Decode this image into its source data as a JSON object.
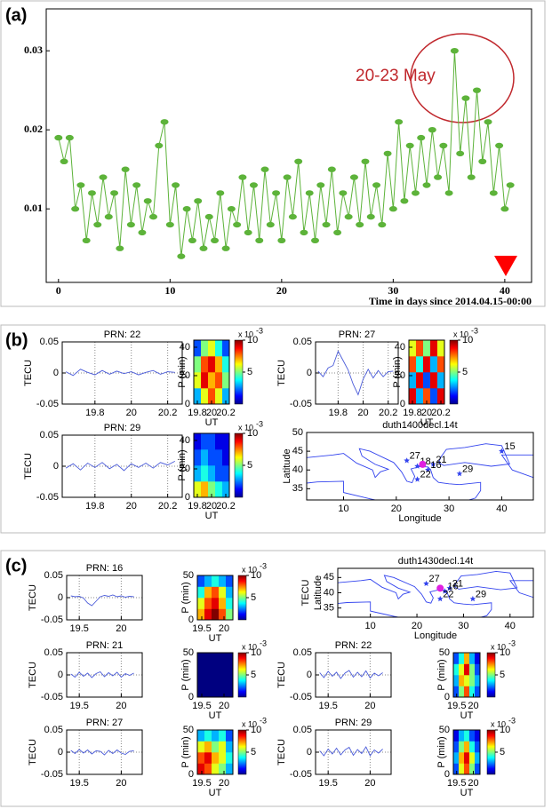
{
  "panels": [
    "(a)",
    "(b)",
    "(c)"
  ],
  "chart_data": [
    {
      "type": "line",
      "annotation": "20-23 May",
      "xlabel": "Time in days since 2014.04.15-00:00",
      "color": "#5db33a",
      "markers": true,
      "grid": false,
      "x": [
        0,
        0.5,
        1,
        1.5,
        2,
        2.5,
        3,
        3.5,
        4,
        4.5,
        5,
        5.5,
        6,
        6.5,
        7,
        7.5,
        8,
        8.5,
        9,
        9.5,
        10,
        10.5,
        11,
        11.5,
        12,
        12.5,
        13,
        13.5,
        14,
        14.5,
        15,
        15.5,
        16,
        16.5,
        17,
        17.5,
        18,
        18.5,
        19,
        19.5,
        20,
        20.5,
        21,
        21.5,
        22,
        22.5,
        23,
        23.5,
        24,
        24.5,
        25,
        25.5,
        26,
        26.5,
        27,
        27.5,
        28,
        28.5,
        29,
        29.5,
        30,
        30.5,
        31,
        31.5,
        32,
        32.5,
        33,
        33.5,
        34,
        34.5,
        35,
        35.5,
        36,
        36.5,
        37,
        37.5,
        38,
        38.5,
        39,
        39.5,
        40,
        40.5
      ],
      "values": [
        0.019,
        0.016,
        0.019,
        0.01,
        0.013,
        0.006,
        0.012,
        0.008,
        0.014,
        0.009,
        0.012,
        0.005,
        0.015,
        0.008,
        0.013,
        0.007,
        0.011,
        0.009,
        0.018,
        0.021,
        0.008,
        0.013,
        0.004,
        0.01,
        0.006,
        0.011,
        0.005,
        0.009,
        0.006,
        0.012,
        0.005,
        0.01,
        0.008,
        0.014,
        0.007,
        0.013,
        0.006,
        0.015,
        0.008,
        0.012,
        0.006,
        0.014,
        0.009,
        0.016,
        0.007,
        0.012,
        0.006,
        0.013,
        0.008,
        0.015,
        0.007,
        0.012,
        0.009,
        0.014,
        0.008,
        0.016,
        0.009,
        0.013,
        0.008,
        0.017,
        0.01,
        0.021,
        0.011,
        0.018,
        0.012,
        0.019,
        0.013,
        0.02,
        0.014,
        0.018,
        0.012,
        0.03,
        0.017,
        0.024,
        0.014,
        0.025,
        0.016,
        0.021,
        0.012,
        0.018,
        0.01,
        0.013
      ],
      "xlim": [
        -1.1,
        42.4
      ],
      "xticks": [
        0,
        10,
        20,
        30,
        40
      ],
      "ylim": [
        0.0007,
        0.0353
      ],
      "yticks": [
        0.01,
        0.02,
        0.03
      ]
    },
    {
      "type": "line",
      "title": "PRN: 22",
      "ylabel": "TECU",
      "color": "#4a5bd9",
      "grid": true,
      "x": [
        19.64,
        19.68,
        19.72,
        19.76,
        19.8,
        19.84,
        19.88,
        19.92,
        19.96,
        20,
        20.04,
        20.08,
        20.12,
        20.16,
        20.2,
        20.24
      ],
      "values": [
        0.002,
        -0.004,
        0.006,
        0.001,
        -0.003,
        0.004,
        -0.002,
        0.003,
        -0.001,
        0.002,
        -0.003,
        0.001,
        0.004,
        -0.002,
        0.002,
        0.001
      ],
      "xlim": [
        19.62,
        20.28
      ],
      "xticks": [
        19.8,
        20,
        20.2
      ],
      "ylim": [
        -0.05,
        0.05
      ],
      "yticks": [
        -0.05,
        0,
        0.05
      ]
    },
    {
      "type": "heatmap",
      "ylabel": "P (min)",
      "xlabel": "UT",
      "xlim": [
        19.75,
        20.25
      ],
      "xticks": [
        19.8,
        20,
        20.2
      ],
      "ylim": [
        0,
        45
      ],
      "yticks": [
        0,
        20,
        40
      ],
      "z": [
        [
          3,
          6,
          8,
          6,
          3
        ],
        [
          6,
          9,
          7,
          8,
          5
        ],
        [
          5,
          8,
          9,
          7,
          4
        ],
        [
          2,
          5,
          6,
          4,
          2
        ]
      ],
      "zlim": [
        0,
        10
      ],
      "colorbar_ticks": [
        5,
        10
      ],
      "colorbar_label": "x 10",
      "colorbar_exponent": "-3"
    },
    {
      "type": "line",
      "title": "PRN: 27",
      "ylabel": "TECU",
      "color": "#4a5bd9",
      "grid": true,
      "x": [
        19.64,
        19.68,
        19.72,
        19.76,
        19.8,
        19.84,
        19.88,
        19.92,
        19.96,
        20,
        20.04,
        20.08,
        20.12,
        20.16,
        20.2,
        20.24
      ],
      "values": [
        0.003,
        -0.006,
        0.008,
        0.012,
        0.035,
        0.02,
        0.005,
        -0.018,
        -0.035,
        -0.01,
        0.006,
        -0.008,
        0.004,
        -0.006,
        0.002,
        0.003
      ],
      "xlim": [
        19.62,
        20.28
      ],
      "xticks": [
        19.8,
        20,
        20.2
      ],
      "ylim": [
        -0.05,
        0.05
      ],
      "yticks": [
        -0.05,
        0,
        0.05
      ]
    },
    {
      "type": "heatmap",
      "ylabel": "P (min)",
      "xlabel": "UT",
      "xlim": [
        19.75,
        20.25
      ],
      "xticks": [
        19.8,
        20,
        20.2
      ],
      "ylim": [
        0,
        45
      ],
      "yticks": [
        0,
        20,
        40
      ],
      "z": [
        [
          9,
          3,
          8,
          2,
          9
        ],
        [
          3,
          9,
          2,
          9,
          3
        ],
        [
          8,
          4,
          9,
          3,
          8
        ],
        [
          6,
          8,
          5,
          9,
          6
        ]
      ],
      "zlim": [
        0,
        10
      ],
      "colorbar_ticks": [
        5,
        10
      ],
      "colorbar_label": "x 10",
      "colorbar_exponent": "-3"
    },
    {
      "type": "line",
      "title": "PRN: 29",
      "ylabel": "TECU",
      "color": "#4a5bd9",
      "grid": true,
      "x": [
        19.64,
        19.68,
        19.72,
        19.76,
        19.8,
        19.84,
        19.88,
        19.92,
        19.96,
        20,
        20.04,
        20.08,
        20.12,
        20.16,
        20.2,
        20.24
      ],
      "values": [
        -0.003,
        0.004,
        -0.006,
        0.005,
        -0.002,
        0.006,
        -0.004,
        0.003,
        -0.007,
        0.004,
        -0.002,
        0.005,
        -0.003,
        0.006,
        0.002,
        0.008
      ],
      "xlim": [
        19.62,
        20.28
      ],
      "xticks": [
        19.8,
        20,
        20.2
      ],
      "ylim": [
        -0.05,
        0.05
      ],
      "yticks": [
        -0.05,
        0,
        0.05
      ]
    },
    {
      "type": "heatmap",
      "ylabel": "P (min)",
      "xlabel": "UT",
      "xlim": [
        19.75,
        20.25
      ],
      "xticks": [
        19.8,
        20,
        20.2
      ],
      "ylim": [
        0,
        45
      ],
      "yticks": [
        0,
        20,
        40
      ],
      "z": [
        [
          6,
          7,
          5,
          4,
          3
        ],
        [
          3,
          4,
          3,
          2,
          2
        ],
        [
          2,
          3,
          2,
          2,
          1
        ],
        [
          1,
          2,
          2,
          1,
          1
        ]
      ],
      "zlim": [
        0,
        10
      ],
      "colorbar_ticks": [
        5,
        10
      ],
      "colorbar_label": "x 10",
      "colorbar_exponent": "-3"
    },
    {
      "type": "map",
      "title": "duth1400decl.14t",
      "xlabel": "Longitude",
      "ylabel": "Latitude",
      "color": "#3344ee",
      "x": [
        22,
        40,
        24,
        27,
        26,
        24,
        32
      ],
      "values": [
        42.5,
        45,
        41,
        41.5,
        40,
        37.5,
        39
      ],
      "point_labels": [
        "27",
        "15",
        "18",
        "21",
        "16",
        "22",
        "29"
      ],
      "epicenter": {
        "x": 25,
        "y": 41.5
      },
      "xlim": [
        3,
        46
      ],
      "xticks": [
        10,
        20,
        30,
        40
      ],
      "ylim": [
        32,
        50
      ],
      "yticks": [
        35,
        40,
        45,
        50
      ]
    },
    {
      "type": "line",
      "title": "PRN: 16",
      "ylabel": "TECU",
      "color": "#4a5bd9",
      "grid": true,
      "x": [
        19.4,
        19.45,
        19.5,
        19.55,
        19.6,
        19.65,
        19.7,
        19.75,
        19.8,
        19.85,
        19.9,
        19.95,
        20,
        20.05,
        20.1,
        20.15
      ],
      "values": [
        0.004,
        0.002,
        0.003,
        -0.001,
        -0.012,
        -0.018,
        -0.008,
        0.002,
        0.005,
        0.003,
        0.006,
        0.002,
        0.004,
        0.001,
        0.003,
        0.002
      ],
      "xlim": [
        19.35,
        20.25
      ],
      "xticks": [
        19.5,
        20
      ],
      "ylim": [
        -0.05,
        0.05
      ],
      "yticks": [
        -0.05,
        0,
        0.05
      ]
    },
    {
      "type": "heatmap",
      "ylabel": "P (min)",
      "xlabel": "UT",
      "xlim": [
        19.4,
        20.2
      ],
      "xticks": [
        19.5,
        20
      ],
      "ylim": [
        0,
        50
      ],
      "yticks": [
        0,
        50
      ],
      "z": [
        [
          7,
          9,
          10,
          8,
          5
        ],
        [
          6,
          8,
          9,
          7,
          4
        ],
        [
          4,
          7,
          8,
          6,
          3
        ],
        [
          2,
          3,
          4,
          3,
          2
        ]
      ],
      "zlim": [
        0,
        10
      ],
      "colorbar_ticks": [
        5,
        10
      ],
      "colorbar_label": "x 10",
      "colorbar_exponent": "-3"
    },
    {
      "type": "map",
      "title": "duth1430decl.14t",
      "xlabel": "Longitude",
      "ylabel": "Latitude",
      "side_label": "TECU",
      "color": "#3344ee",
      "x": [
        22,
        27,
        26,
        25,
        32
      ],
      "values": [
        43,
        41.5,
        40.5,
        38,
        38
      ],
      "point_labels": [
        "27",
        "21",
        "16",
        "22",
        "29"
      ],
      "epicenter": {
        "x": 25,
        "y": 41.5
      },
      "xlim": [
        3,
        45
      ],
      "xticks": [
        10,
        20,
        30,
        40
      ],
      "ylim": [
        32,
        48
      ],
      "yticks": [
        35,
        40,
        45
      ]
    },
    {
      "type": "line",
      "title": "PRN: 21",
      "ylabel": "TECU",
      "color": "#4a5bd9",
      "grid": true,
      "x": [
        19.4,
        19.45,
        19.5,
        19.55,
        19.6,
        19.65,
        19.7,
        19.75,
        19.8,
        19.85,
        19.9,
        19.95,
        20,
        20.05,
        20.1,
        20.15
      ],
      "values": [
        0.002,
        -0.005,
        0.006,
        -0.003,
        0.004,
        -0.006,
        0.003,
        0.007,
        -0.004,
        0.005,
        -0.002,
        0.006,
        -0.005,
        0.003,
        -0.001,
        0.004
      ],
      "xlim": [
        19.35,
        20.25
      ],
      "xticks": [
        19.5,
        20
      ],
      "ylim": [
        -0.05,
        0.05
      ],
      "yticks": [
        -0.05,
        0,
        0.05
      ]
    },
    {
      "type": "heatmap",
      "ylabel": "P (min)",
      "xlabel": "UT",
      "xlim": [
        19.4,
        20.2
      ],
      "xticks": [
        19.5,
        20
      ],
      "ylim": [
        0,
        50
      ],
      "yticks": [
        0,
        50
      ],
      "z": [
        [
          0,
          0,
          0,
          0,
          0
        ],
        [
          0,
          0,
          0,
          0,
          0
        ],
        [
          0,
          0,
          0,
          0,
          0
        ],
        [
          0,
          0,
          0,
          0,
          0
        ]
      ],
      "zlim": [
        0,
        10
      ],
      "colorbar_ticks": [
        5,
        10
      ],
      "colorbar_label": "x 10",
      "colorbar_exponent": "-3"
    },
    {
      "type": "line",
      "title": "PRN: 22",
      "ylabel": "TECU",
      "color": "#4a5bd9",
      "grid": true,
      "x": [
        19.4,
        19.45,
        19.5,
        19.55,
        19.6,
        19.65,
        19.7,
        19.75,
        19.8,
        19.85,
        19.9,
        19.95,
        20,
        20.05,
        20.1,
        20.15
      ],
      "values": [
        0.005,
        -0.006,
        0.008,
        -0.003,
        0.006,
        -0.008,
        0.004,
        0.01,
        -0.005,
        0.006,
        -0.004,
        0.009,
        -0.007,
        0.004,
        -0.002,
        0.005
      ],
      "xlim": [
        19.35,
        20.25
      ],
      "xticks": [
        19.5,
        20
      ],
      "ylim": [
        -0.05,
        0.05
      ],
      "yticks": [
        -0.05,
        0,
        0.05
      ]
    },
    {
      "type": "heatmap",
      "ylabel": "P (min)",
      "xlabel": "UT",
      "xlim": [
        19.4,
        20.2
      ],
      "xticks": [
        19.5,
        20
      ],
      "ylim": [
        0,
        50
      ],
      "yticks": [
        0,
        50
      ],
      "z": [
        [
          2,
          5,
          8,
          4,
          2
        ],
        [
          3,
          7,
          6,
          5,
          3
        ],
        [
          4,
          6,
          9,
          5,
          2
        ],
        [
          2,
          4,
          7,
          3,
          1
        ]
      ],
      "zlim": [
        0,
        10
      ],
      "colorbar_ticks": [
        5,
        10
      ],
      "colorbar_label": "x 10",
      "colorbar_exponent": "-3"
    },
    {
      "type": "line",
      "title": "PRN: 27",
      "ylabel": "TECU",
      "color": "#4a5bd9",
      "grid": true,
      "x": [
        19.4,
        19.45,
        19.5,
        19.55,
        19.6,
        19.65,
        19.7,
        19.75,
        19.8,
        19.85,
        19.9,
        19.95,
        20,
        20.05,
        20.1,
        20.15
      ],
      "values": [
        0.004,
        -0.003,
        0.006,
        -0.002,
        0.005,
        -0.004,
        0.003,
        0.002,
        -0.006,
        0.004,
        -0.003,
        0.005,
        -0.002,
        -0.005,
        0.002,
        0.003
      ],
      "xlim": [
        19.35,
        20.25
      ],
      "xticks": [
        19.5,
        20
      ],
      "ylim": [
        -0.05,
        0.05
      ],
      "yticks": [
        -0.05,
        0,
        0.05
      ]
    },
    {
      "type": "heatmap",
      "ylabel": "P (min)",
      "xlabel": "UT",
      "xlim": [
        19.4,
        20.2
      ],
      "xticks": [
        19.5,
        20
      ],
      "ylim": [
        0,
        50
      ],
      "yticks": [
        0,
        50
      ],
      "z": [
        [
          9,
          8,
          6,
          5,
          3
        ],
        [
          8,
          9,
          7,
          6,
          4
        ],
        [
          6,
          7,
          5,
          6,
          3
        ],
        [
          3,
          4,
          3,
          4,
          2
        ]
      ],
      "zlim": [
        0,
        10
      ],
      "colorbar_ticks": [
        5,
        10
      ],
      "colorbar_label": "x 10",
      "colorbar_exponent": "-3"
    },
    {
      "type": "line",
      "title": "PRN: 29",
      "ylabel": "TECU",
      "color": "#4a5bd9",
      "grid": true,
      "x": [
        19.4,
        19.45,
        19.5,
        19.55,
        19.6,
        19.65,
        19.7,
        19.75,
        19.8,
        19.85,
        19.9,
        19.95,
        20,
        20.05,
        20.1,
        20.15
      ],
      "values": [
        0.003,
        -0.008,
        0.007,
        -0.004,
        0.009,
        -0.006,
        0.005,
        0.011,
        -0.007,
        0.006,
        -0.003,
        0.012,
        -0.008,
        0.005,
        -0.002,
        0.007
      ],
      "xlim": [
        19.35,
        20.25
      ],
      "xticks": [
        19.5,
        20
      ],
      "ylim": [
        -0.05,
        0.05
      ],
      "yticks": [
        -0.05,
        0,
        0.05
      ]
    },
    {
      "type": "heatmap",
      "ylabel": "P (min)",
      "xlabel": "UT",
      "xlim": [
        19.4,
        20.2
      ],
      "xticks": [
        19.5,
        20
      ],
      "ylim": [
        0,
        50
      ],
      "yticks": [
        0,
        50
      ],
      "z": [
        [
          2,
          6,
          8,
          5,
          2
        ],
        [
          3,
          7,
          9,
          6,
          3
        ],
        [
          2,
          5,
          7,
          4,
          2
        ],
        [
          1,
          3,
          4,
          2,
          1
        ]
      ],
      "zlim": [
        0,
        10
      ],
      "colorbar_ticks": [
        5,
        10
      ],
      "colorbar_label": "x 10",
      "colorbar_exponent": "-3"
    }
  ]
}
